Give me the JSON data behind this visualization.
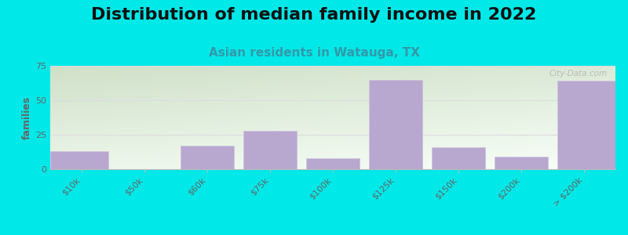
{
  "title": "Distribution of median family income in 2022",
  "subtitle": "Asian residents in Watauga, TX",
  "categories": [
    "$10k",
    "$50k",
    "$60k",
    "$75k",
    "$100k",
    "$125k",
    "$150k",
    "$200k",
    "> $200k"
  ],
  "values": [
    13,
    0,
    17,
    28,
    8,
    65,
    16,
    9,
    64
  ],
  "bar_color": "#b8a8d0",
  "bar_edge_color": "#d0c0e0",
  "background_outer": "#00e8e8",
  "title_fontsize": 16,
  "title_fontweight": "bold",
  "subtitle_fontsize": 11,
  "subtitle_color": "#3399aa",
  "ylabel": "families",
  "ylim": [
    0,
    75
  ],
  "yticks": [
    0,
    25,
    50,
    75
  ],
  "watermark": "City-Data.com",
  "bg_gradient_topleft": "#cfe0c8",
  "bg_gradient_bottomright": "#f8fff8",
  "grid_color": "#dddddd",
  "tick_color": "#666666",
  "tick_fontsize": 8
}
